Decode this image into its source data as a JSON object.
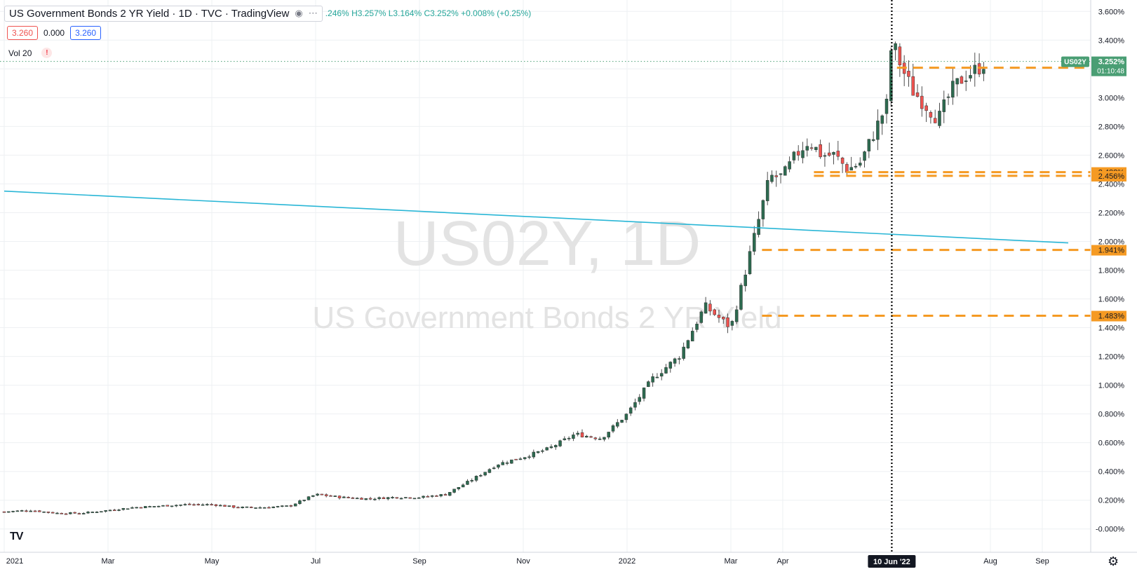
{
  "header": {
    "title": "US Government Bonds 2 YR Yield · 1D · TVC · TradingView",
    "ohlc": ".246% H3.257% L3.164% C3.252% +0.008% (+0.25%)",
    "eye_icon": "eye-icon",
    "more_icon": "ellipsis-icon"
  },
  "values": {
    "v1": "3.260",
    "v2": "0.000",
    "v3": "3.260"
  },
  "indicator": {
    "label": "Vol 20",
    "warn": "!"
  },
  "watermark": {
    "line1": "US02Y, 1D",
    "line2": "US Government Bonds 2 YR Yield"
  },
  "colors": {
    "up": "#26a69a",
    "down": "#ef5350",
    "candle_body": "#2d6b50",
    "trendline": "#29b6d6",
    "hline": "#f59a23",
    "price_tag": "#4a9e74",
    "grid": "#eef0f3"
  },
  "chart_data": {
    "type": "candlestick",
    "y_axis": {
      "range": [
        -0.05,
        3.65
      ],
      "ticks": [
        "3.600%",
        "3.400%",
        "3.200%",
        "3.000%",
        "2.800%",
        "2.600%",
        "2.400%",
        "2.200%",
        "2.000%",
        "1.800%",
        "1.600%",
        "1.400%",
        "1.200%",
        "1.000%",
        "0.800%",
        "0.600%",
        "0.400%",
        "0.200%",
        "-0.000%"
      ],
      "tick_values": [
        3.6,
        3.4,
        3.2,
        3.0,
        2.8,
        2.6,
        2.4,
        2.2,
        2.0,
        1.8,
        1.6,
        1.4,
        1.2,
        1.0,
        0.8,
        0.6,
        0.4,
        0.2,
        0.0
      ]
    },
    "x_axis": {
      "labels": [
        "2021",
        "Mar",
        "May",
        "Jul",
        "Sep",
        "Nov",
        "2022",
        "Mar",
        "Apr",
        "Aug",
        "Sep"
      ],
      "positions": [
        0,
        2,
        4,
        6,
        8,
        10,
        12,
        14,
        15,
        19,
        20
      ],
      "crosshair_label": "10 Jun '22"
    },
    "series_points": [
      [
        0,
        0.12
      ],
      [
        0.5,
        0.13
      ],
      [
        1,
        0.11
      ],
      [
        1.5,
        0.11
      ],
      [
        2,
        0.13
      ],
      [
        2.5,
        0.15
      ],
      [
        3,
        0.16
      ],
      [
        3.5,
        0.17
      ],
      [
        4,
        0.17
      ],
      [
        4.5,
        0.15
      ],
      [
        5,
        0.15
      ],
      [
        5.5,
        0.16
      ],
      [
        6,
        0.24
      ],
      [
        6.5,
        0.22
      ],
      [
        7,
        0.21
      ],
      [
        7.5,
        0.22
      ],
      [
        8,
        0.22
      ],
      [
        8.5,
        0.24
      ],
      [
        9,
        0.34
      ],
      [
        9.5,
        0.45
      ],
      [
        10,
        0.5
      ],
      [
        10.5,
        0.56
      ],
      [
        11,
        0.66
      ],
      [
        11.5,
        0.63
      ],
      [
        12,
        0.8
      ],
      [
        12.5,
        1.05
      ],
      [
        13,
        1.2
      ],
      [
        13.5,
        1.55
      ],
      [
        14,
        1.4
      ],
      [
        14.25,
        1.75
      ],
      [
        14.5,
        2.1
      ],
      [
        14.75,
        2.45
      ],
      [
        15,
        2.45
      ],
      [
        15.25,
        2.6
      ],
      [
        15.5,
        2.7
      ],
      [
        15.75,
        2.6
      ],
      [
        16,
        2.6
      ],
      [
        16.25,
        2.5
      ],
      [
        16.5,
        2.55
      ],
      [
        16.75,
        2.75
      ],
      [
        17,
        2.95
      ],
      [
        17.1,
        3.4
      ],
      [
        17.3,
        3.2
      ],
      [
        17.5,
        3.05
      ],
      [
        17.75,
        2.95
      ],
      [
        18,
        2.85
      ],
      [
        18.25,
        3.05
      ],
      [
        18.5,
        3.15
      ],
      [
        18.75,
        3.2
      ],
      [
        18.9,
        3.25
      ]
    ],
    "horizontal_levels": [
      {
        "value": 3.208,
        "label": "3.208%"
      },
      {
        "value": 2.482,
        "label": "2.482%"
      },
      {
        "value": 2.456,
        "label": "2.456%"
      },
      {
        "value": 1.941,
        "label": "1.941%"
      },
      {
        "value": 1.483,
        "label": "1.483%"
      }
    ],
    "trendline": {
      "from": [
        0,
        2.35
      ],
      "to": [
        20.5,
        1.99
      ]
    },
    "crosshair_x": 17.1,
    "last_price": {
      "symbol": "US02Y",
      "value": "3.252%",
      "countdown": "01:10:48",
      "numeric": 3.252
    }
  }
}
